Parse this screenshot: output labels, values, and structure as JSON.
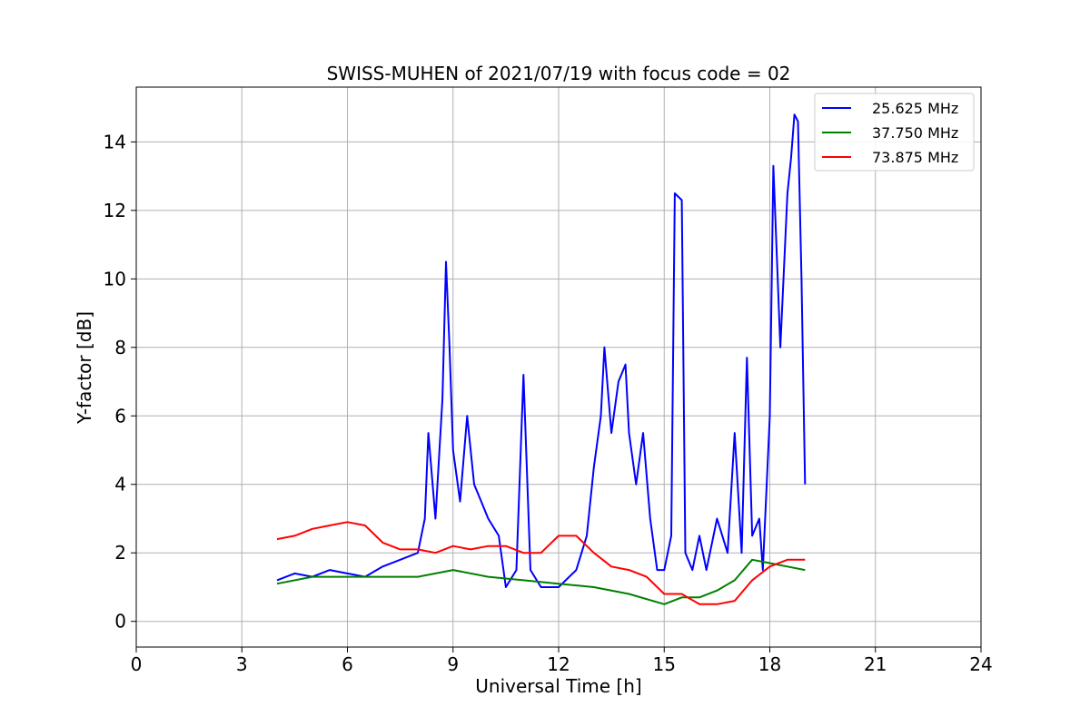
{
  "chart_data": {
    "type": "line",
    "title": "SWISS-MUHEN of 2021/07/19 with focus code = 02",
    "xlabel": "Universal Time [h]",
    "ylabel": "Y-factor [dB]",
    "xlim": [
      0,
      24
    ],
    "ylim": [
      -0.75,
      15.6
    ],
    "x_ticks": [
      0,
      3,
      6,
      9,
      12,
      15,
      18,
      21,
      24
    ],
    "y_ticks": [
      0,
      2,
      4,
      6,
      8,
      10,
      12,
      14
    ],
    "grid": true,
    "legend_position": "top-right",
    "series": [
      {
        "name": "25.625 MHz",
        "color": "#0000ff",
        "points": [
          [
            4.0,
            1.2
          ],
          [
            4.5,
            1.4
          ],
          [
            5.0,
            1.3
          ],
          [
            5.5,
            1.5
          ],
          [
            6.0,
            1.4
          ],
          [
            6.5,
            1.3
          ],
          [
            7.0,
            1.6
          ],
          [
            7.5,
            1.8
          ],
          [
            8.0,
            2.0
          ],
          [
            8.2,
            3.0
          ],
          [
            8.3,
            5.5
          ],
          [
            8.5,
            3.0
          ],
          [
            8.7,
            6.5
          ],
          [
            8.8,
            10.5
          ],
          [
            8.9,
            8.0
          ],
          [
            9.0,
            5.0
          ],
          [
            9.2,
            3.5
          ],
          [
            9.4,
            6.0
          ],
          [
            9.6,
            4.0
          ],
          [
            9.8,
            3.5
          ],
          [
            10.0,
            3.0
          ],
          [
            10.3,
            2.5
          ],
          [
            10.5,
            1.0
          ],
          [
            10.8,
            1.5
          ],
          [
            11.0,
            7.2
          ],
          [
            11.2,
            1.5
          ],
          [
            11.5,
            1.0
          ],
          [
            12.0,
            1.0
          ],
          [
            12.5,
            1.5
          ],
          [
            12.8,
            2.5
          ],
          [
            13.0,
            4.5
          ],
          [
            13.2,
            6.0
          ],
          [
            13.3,
            8.0
          ],
          [
            13.5,
            5.5
          ],
          [
            13.7,
            7.0
          ],
          [
            13.9,
            7.5
          ],
          [
            14.0,
            5.5
          ],
          [
            14.2,
            4.0
          ],
          [
            14.4,
            5.5
          ],
          [
            14.6,
            3.0
          ],
          [
            14.8,
            1.5
          ],
          [
            15.0,
            1.5
          ],
          [
            15.2,
            2.5
          ],
          [
            15.3,
            12.5
          ],
          [
            15.5,
            12.3
          ],
          [
            15.6,
            2.0
          ],
          [
            15.8,
            1.5
          ],
          [
            16.0,
            2.5
          ],
          [
            16.2,
            1.5
          ],
          [
            16.5,
            3.0
          ],
          [
            16.8,
            2.0
          ],
          [
            17.0,
            5.5
          ],
          [
            17.2,
            2.0
          ],
          [
            17.35,
            7.7
          ],
          [
            17.5,
            2.5
          ],
          [
            17.7,
            3.0
          ],
          [
            17.8,
            1.5
          ],
          [
            18.0,
            6.0
          ],
          [
            18.1,
            13.3
          ],
          [
            18.3,
            8.0
          ],
          [
            18.5,
            12.5
          ],
          [
            18.6,
            13.5
          ],
          [
            18.7,
            14.8
          ],
          [
            18.8,
            14.6
          ],
          [
            18.9,
            10.0
          ],
          [
            19.0,
            4.0
          ]
        ]
      },
      {
        "name": "37.750 MHz",
        "color": "#008000",
        "points": [
          [
            4.0,
            1.1
          ],
          [
            5.0,
            1.3
          ],
          [
            6.0,
            1.3
          ],
          [
            7.0,
            1.3
          ],
          [
            8.0,
            1.3
          ],
          [
            9.0,
            1.5
          ],
          [
            10.0,
            1.3
          ],
          [
            11.0,
            1.2
          ],
          [
            12.0,
            1.1
          ],
          [
            13.0,
            1.0
          ],
          [
            14.0,
            0.8
          ],
          [
            15.0,
            0.5
          ],
          [
            15.5,
            0.7
          ],
          [
            16.0,
            0.7
          ],
          [
            16.5,
            0.9
          ],
          [
            17.0,
            1.2
          ],
          [
            17.5,
            1.8
          ],
          [
            18.0,
            1.7
          ],
          [
            18.5,
            1.6
          ],
          [
            19.0,
            1.5
          ]
        ]
      },
      {
        "name": "73.875 MHz",
        "color": "#ff0000",
        "points": [
          [
            4.0,
            2.4
          ],
          [
            4.5,
            2.5
          ],
          [
            5.0,
            2.7
          ],
          [
            5.5,
            2.8
          ],
          [
            6.0,
            2.9
          ],
          [
            6.5,
            2.8
          ],
          [
            7.0,
            2.3
          ],
          [
            7.5,
            2.1
          ],
          [
            8.0,
            2.1
          ],
          [
            8.5,
            2.0
          ],
          [
            9.0,
            2.2
          ],
          [
            9.5,
            2.1
          ],
          [
            10.0,
            2.2
          ],
          [
            10.5,
            2.2
          ],
          [
            11.0,
            2.0
          ],
          [
            11.5,
            2.0
          ],
          [
            12.0,
            2.5
          ],
          [
            12.5,
            2.5
          ],
          [
            13.0,
            2.0
          ],
          [
            13.5,
            1.6
          ],
          [
            14.0,
            1.5
          ],
          [
            14.5,
            1.3
          ],
          [
            15.0,
            0.8
          ],
          [
            15.5,
            0.8
          ],
          [
            16.0,
            0.5
          ],
          [
            16.5,
            0.5
          ],
          [
            17.0,
            0.6
          ],
          [
            17.5,
            1.2
          ],
          [
            18.0,
            1.6
          ],
          [
            18.5,
            1.8
          ],
          [
            19.0,
            1.8
          ]
        ]
      }
    ]
  }
}
